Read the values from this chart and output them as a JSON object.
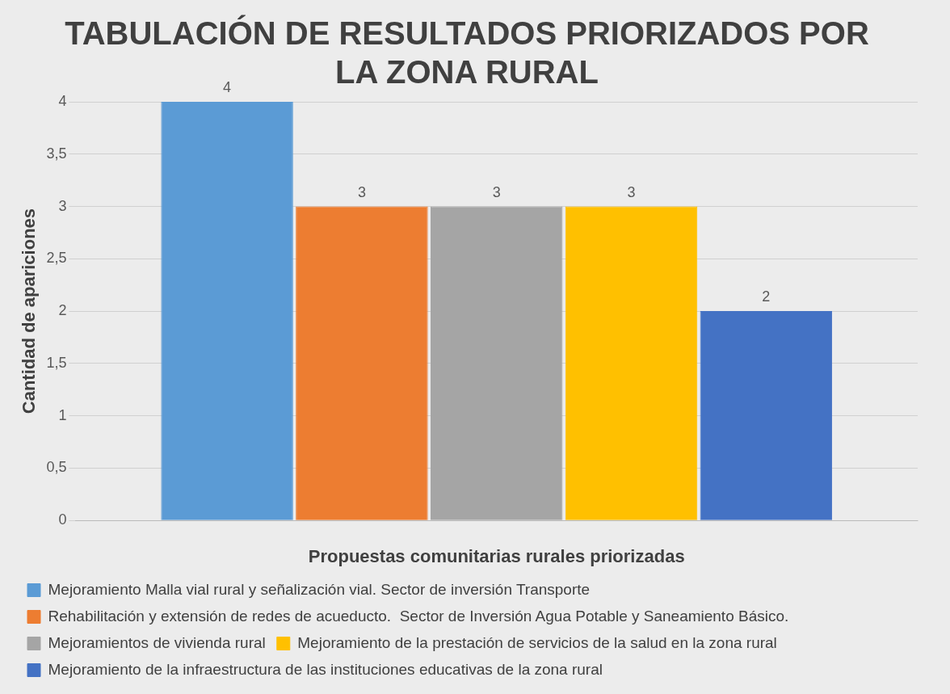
{
  "chart_data": {
    "type": "bar",
    "title": "TABULACIÓN DE RESULTADOS PRIORIZADOS POR LA ZONA RURAL",
    "xlabel": "Propuestas comunitarias rurales priorizadas",
    "ylabel": "Cantidad de apariciones",
    "categories": [
      null
    ],
    "series": [
      {
        "name": "Mejoramiento Malla vial rural y señalización vial. Sector de inversión Transporte",
        "color": "#5b9bd5",
        "values": [
          4
        ]
      },
      {
        "name": "Rehabilitación y extensión de redes de acueducto.  Sector de Inversión Agua Potable y Saneamiento Básico.",
        "color": "#ed7d31",
        "values": [
          3
        ]
      },
      {
        "name": "Mejoramientos de vivienda rural",
        "color": "#a5a5a5",
        "values": [
          3
        ]
      },
      {
        "name": "Mejoramiento de la prestación de servicios de la salud en la zona rural",
        "color": "#ffc000",
        "values": [
          3
        ]
      },
      {
        "name": "Mejoramiento de la infraestructura de las instituciones educativas de la zona rural",
        "color": "#4472c4",
        "values": [
          2
        ]
      }
    ],
    "ylim": [
      0,
      4
    ],
    "yticks": [
      0,
      {
        "value": 0.5,
        "label": "0,5"
      },
      1,
      {
        "value": 1.5,
        "label": "1,5"
      },
      2,
      {
        "value": 2.5,
        "label": "2,5"
      },
      3,
      {
        "value": 3.5,
        "label": "3,5"
      },
      4
    ],
    "grid": "y",
    "legend": "bottom",
    "data_labels": true
  }
}
